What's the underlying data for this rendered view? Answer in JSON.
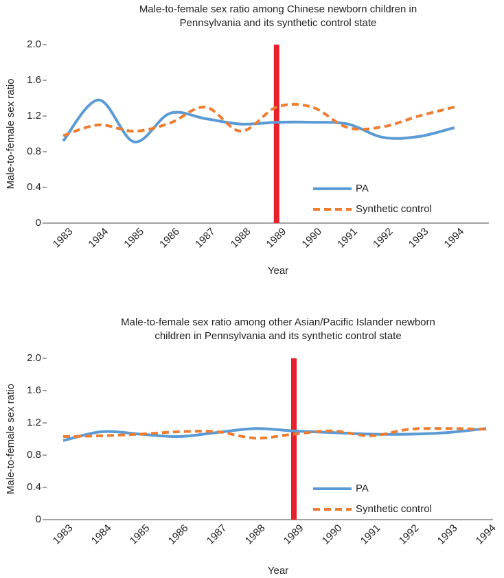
{
  "chart_data": [
    {
      "type": "line",
      "title": [
        "Male-to-female sex ratio among Chinese newborn children in",
        "Pennsylvania and its synthetic control state"
      ],
      "x_label": "Year",
      "y_label": "Male-to-female sex ratio",
      "categories": [
        "1983",
        "1984",
        "1985",
        "1986",
        "1987",
        "1988",
        "1989",
        "1990",
        "1991",
        "1992",
        "1993",
        "1994"
      ],
      "series": [
        {
          "name": "PA",
          "color": "#5b9bd5",
          "dash": false,
          "values": [
            0.92,
            1.38,
            0.91,
            1.23,
            1.17,
            1.11,
            1.13,
            1.13,
            1.11,
            0.96,
            0.97,
            1.07
          ]
        },
        {
          "name": "Synthetic control",
          "color": "#ed7d31",
          "dash": true,
          "values": [
            0.98,
            1.1,
            1.03,
            1.12,
            1.3,
            1.03,
            1.3,
            1.3,
            1.07,
            1.08,
            1.2,
            1.3
          ]
        }
      ],
      "ylim": [
        0,
        2
      ],
      "yticks": [
        0,
        0.4,
        0.8,
        1.2,
        1.6,
        {
          "value": 2,
          "label": "2.0"
        }
      ],
      "marker": {
        "category": "1989",
        "color": "#e8202a"
      },
      "smooth": true
    },
    {
      "type": "line",
      "title": [
        "Male-to-female sex ratio among other Asian/Pacific Islander newborn",
        "children in Pennsylvania and its synthetic control state"
      ],
      "x_label": "Year",
      "y_label": "Male-to-female sex ratio",
      "categories": [
        "1983",
        "1984",
        "1985",
        "1986",
        "1987",
        "1988",
        "1989",
        "1990",
        "1991",
        "1992",
        "1993",
        "1994"
      ],
      "series": [
        {
          "name": "PA",
          "color": "#5b9bd5",
          "dash": false,
          "values": [
            0.98,
            1.09,
            1.06,
            1.03,
            1.08,
            1.13,
            1.1,
            1.08,
            1.06,
            1.06,
            1.08,
            1.13
          ]
        },
        {
          "name": "Synthetic control",
          "color": "#ed7d31",
          "dash": true,
          "values": [
            1.03,
            1.04,
            1.06,
            1.09,
            1.09,
            1.01,
            1.06,
            1.1,
            1.04,
            1.12,
            1.13,
            1.12
          ]
        }
      ],
      "ylim": [
        0,
        2
      ],
      "yticks": [
        0,
        0.4,
        0.8,
        1.2,
        1.6,
        {
          "value": 2,
          "label": "2.0"
        }
      ],
      "marker": {
        "category": "1989",
        "color": "#e8202a"
      },
      "smooth": true
    }
  ]
}
